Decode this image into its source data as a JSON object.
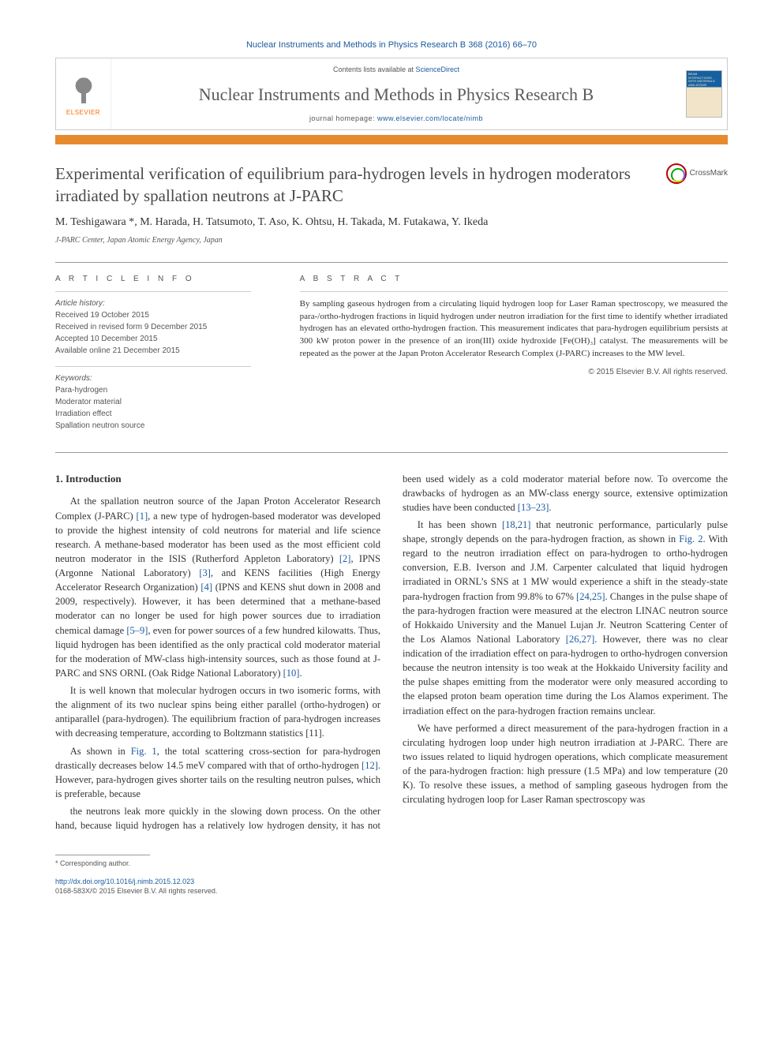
{
  "journal_ref": "Nuclear Instruments and Methods in Physics Research B 368 (2016) 66–70",
  "header": {
    "contents_prefix": "Contents lists available at ",
    "contents_link": "ScienceDirect",
    "journal_name": "Nuclear Instruments and Methods in Physics Research B",
    "homepage_prefix": "journal homepage: ",
    "homepage_url": "www.elsevier.com/locate/nimb",
    "elsevier_label": "ELSEVIER"
  },
  "colors": {
    "orange_bar": "#e68a2e",
    "link": "#1a5a9e",
    "title": "#4a4a4a",
    "rule": "#999999"
  },
  "article": {
    "title": "Experimental verification of equilibrium para-hydrogen levels in hydrogen moderators irradiated by spallation neutrons at J-PARC",
    "crossmark_label": "CrossMark",
    "authors": "M. Teshigawara *, M. Harada, H. Tatsumoto, T. Aso, K. Ohtsu, H. Takada, M. Futakawa, Y. Ikeda",
    "affiliation": "J-PARC Center, Japan Atomic Energy Agency, Japan"
  },
  "info": {
    "label": "A R T I C L E   I N F O",
    "history_label": "Article history:",
    "history": [
      "Received 19 October 2015",
      "Received in revised form 9 December 2015",
      "Accepted 10 December 2015",
      "Available online 21 December 2015"
    ],
    "keywords_label": "Keywords:",
    "keywords": [
      "Para-hydrogen",
      "Moderator material",
      "Irradiation effect",
      "Spallation neutron source"
    ]
  },
  "abstract": {
    "label": "A B S T R A C T",
    "text": "By sampling gaseous hydrogen from a circulating liquid hydrogen loop for Laser Raman spectroscopy, we measured the para-/ortho-hydrogen fractions in liquid hydrogen under neutron irradiation for the first time to identify whether irradiated hydrogen has an elevated ortho-hydrogen fraction. This measurement indicates that para-hydrogen equilibrium persists at 300 kW proton power in the presence of an iron(III) oxide hydroxide [Fe(OH)₃] catalyst. The measurements will be repeated as the power at the Japan Proton Accelerator Research Complex (J-PARC) increases to the MW level.",
    "copyright": "© 2015 Elsevier B.V. All rights reserved."
  },
  "body": {
    "heading": "1. Introduction",
    "p1": "At the spallation neutron source of the Japan Proton Accelerator Research Complex (J-PARC) [1], a new type of hydrogen-based moderator was developed to provide the highest intensity of cold neutrons for material and life science research. A methane-based moderator has been used as the most efficient cold neutron moderator in the ISIS (Rutherford Appleton Laboratory) [2], IPNS (Argonne National Laboratory) [3], and KENS facilities (High Energy Accelerator Research Organization) [4] (IPNS and KENS shut down in 2008 and 2009, respectively). However, it has been determined that a methane-based moderator can no longer be used for high power sources due to irradiation chemical damage [5–9], even for power sources of a few hundred kilowatts. Thus, liquid hydrogen has been identified as the only practical cold moderator material for the moderation of MW-class high-intensity sources, such as those found at J-PARC and SNS ORNL (Oak Ridge National Laboratory) [10].",
    "p2": "It is well known that molecular hydrogen occurs in two isomeric forms, with the alignment of its two nuclear spins being either parallel (ortho-hydrogen) or antiparallel (para-hydrogen). The equilibrium fraction of para-hydrogen increases with decreasing temperature, according to Boltzmann statistics [11].",
    "p3": "As shown in Fig. 1, the total scattering cross-section for para-hydrogen drastically decreases below 14.5 meV compared with that of ortho-hydrogen [12]. However, para-hydrogen gives shorter tails on the resulting neutron pulses, which is preferable, because",
    "p4": "the neutrons leak more quickly in the slowing down process. On the other hand, because liquid hydrogen has a relatively low hydrogen density, it has not been used widely as a cold moderator material before now. To overcome the drawbacks of hydrogen as an MW-class energy source, extensive optimization studies have been conducted [13–23].",
    "p5": "It has been shown [18,21] that neutronic performance, particularly pulse shape, strongly depends on the para-hydrogen fraction, as shown in Fig. 2. With regard to the neutron irradiation effect on para-hydrogen to ortho-hydrogen conversion, E.B. Iverson and J.M. Carpenter calculated that liquid hydrogen irradiated in ORNL's SNS at 1 MW would experience a shift in the steady-state para-hydrogen fraction from 99.8% to 67% [24,25]. Changes in the pulse shape of the para-hydrogen fraction were measured at the electron LINAC neutron source of Hokkaido University and the Manuel Lujan Jr. Neutron Scattering Center of the Los Alamos National Laboratory [26,27]. However, there was no clear indication of the irradiation effect on para-hydrogen to ortho-hydrogen conversion because the neutron intensity is too weak at the Hokkaido University facility and the pulse shapes emitting from the moderator were only measured according to the elapsed proton beam operation time during the Los Alamos experiment. The irradiation effect on the para-hydrogen fraction remains unclear.",
    "p6": "We have performed a direct measurement of the para-hydrogen fraction in a circulating hydrogen loop under high neutron irradiation at J-PARC. There are two issues related to liquid hydrogen operations, which complicate measurement of the para-hydrogen fraction: high pressure (1.5 MPa) and low temperature (20 K). To resolve these issues, a method of sampling gaseous hydrogen from the circulating hydrogen loop for Laser Raman spectroscopy was"
  },
  "references_inline": {
    "1": "[1]",
    "2": "[2]",
    "3": "[3]",
    "4": "[4]",
    "5_9": "[5–9]",
    "10": "[10]",
    "11": "[11]",
    "12": "[12]",
    "13_23": "[13–23]",
    "18_21": "[18,21]",
    "24_25": "[24,25]",
    "26_27": "[26,27]",
    "fig1": "Fig. 1",
    "fig2": "Fig. 2"
  },
  "footer": {
    "corr": "* Corresponding author.",
    "doi": "http://dx.doi.org/10.1016/j.nimb.2015.12.023",
    "issn_line": "0168-583X/© 2015 Elsevier B.V. All rights reserved."
  }
}
